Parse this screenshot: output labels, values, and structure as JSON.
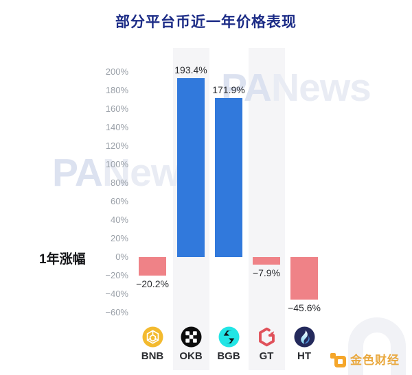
{
  "title": "部分平台币近一年价格表现",
  "row_label": "1年涨幅",
  "chart_data": {
    "type": "bar",
    "title": "部分平台币近一年价格表现",
    "ylabel": "1年涨幅",
    "categories": [
      "BNB",
      "OKB",
      "BGB",
      "GT",
      "HT"
    ],
    "values": [
      -20.2,
      193.4,
      171.9,
      -7.9,
      -45.6
    ],
    "value_labels": [
      "−20.2%",
      "193.4%",
      "171.9%",
      "−7.9%",
      "−45.6%"
    ],
    "ytick_values": [
      200,
      180,
      160,
      140,
      120,
      100,
      80,
      60,
      40,
      20,
      0,
      -20,
      -40,
      -60
    ],
    "yticks": [
      "200%",
      "180%",
      "160%",
      "140%",
      "120%",
      "100%",
      "80%",
      "60%",
      "40%",
      "20%",
      "0%",
      "−20%",
      "−40%",
      "−60%"
    ],
    "ylim": [
      -60,
      200
    ],
    "grid": false,
    "legend": "none",
    "positive_color": "#3179DC",
    "negative_color": "#EF8287",
    "stripe_color": "#f5f5f7",
    "striped_categories": [
      "OKB",
      "GT"
    ]
  },
  "coins": [
    {
      "label": "BNB",
      "icon": "bnb-icon",
      "color": "#F3BA2F"
    },
    {
      "label": "OKB",
      "icon": "okb-icon",
      "color": "#0D0D0D"
    },
    {
      "label": "BGB",
      "icon": "bgb-icon",
      "color": "#22E5E5"
    },
    {
      "label": "GT",
      "icon": "gt-icon",
      "color": "#E0515A"
    },
    {
      "label": "HT",
      "icon": "ht-icon",
      "color": "#242A5C"
    }
  ],
  "watermarks": {
    "p": "PA",
    "a": "",
    "rest": "News",
    "jinse_text": "金色财经"
  }
}
